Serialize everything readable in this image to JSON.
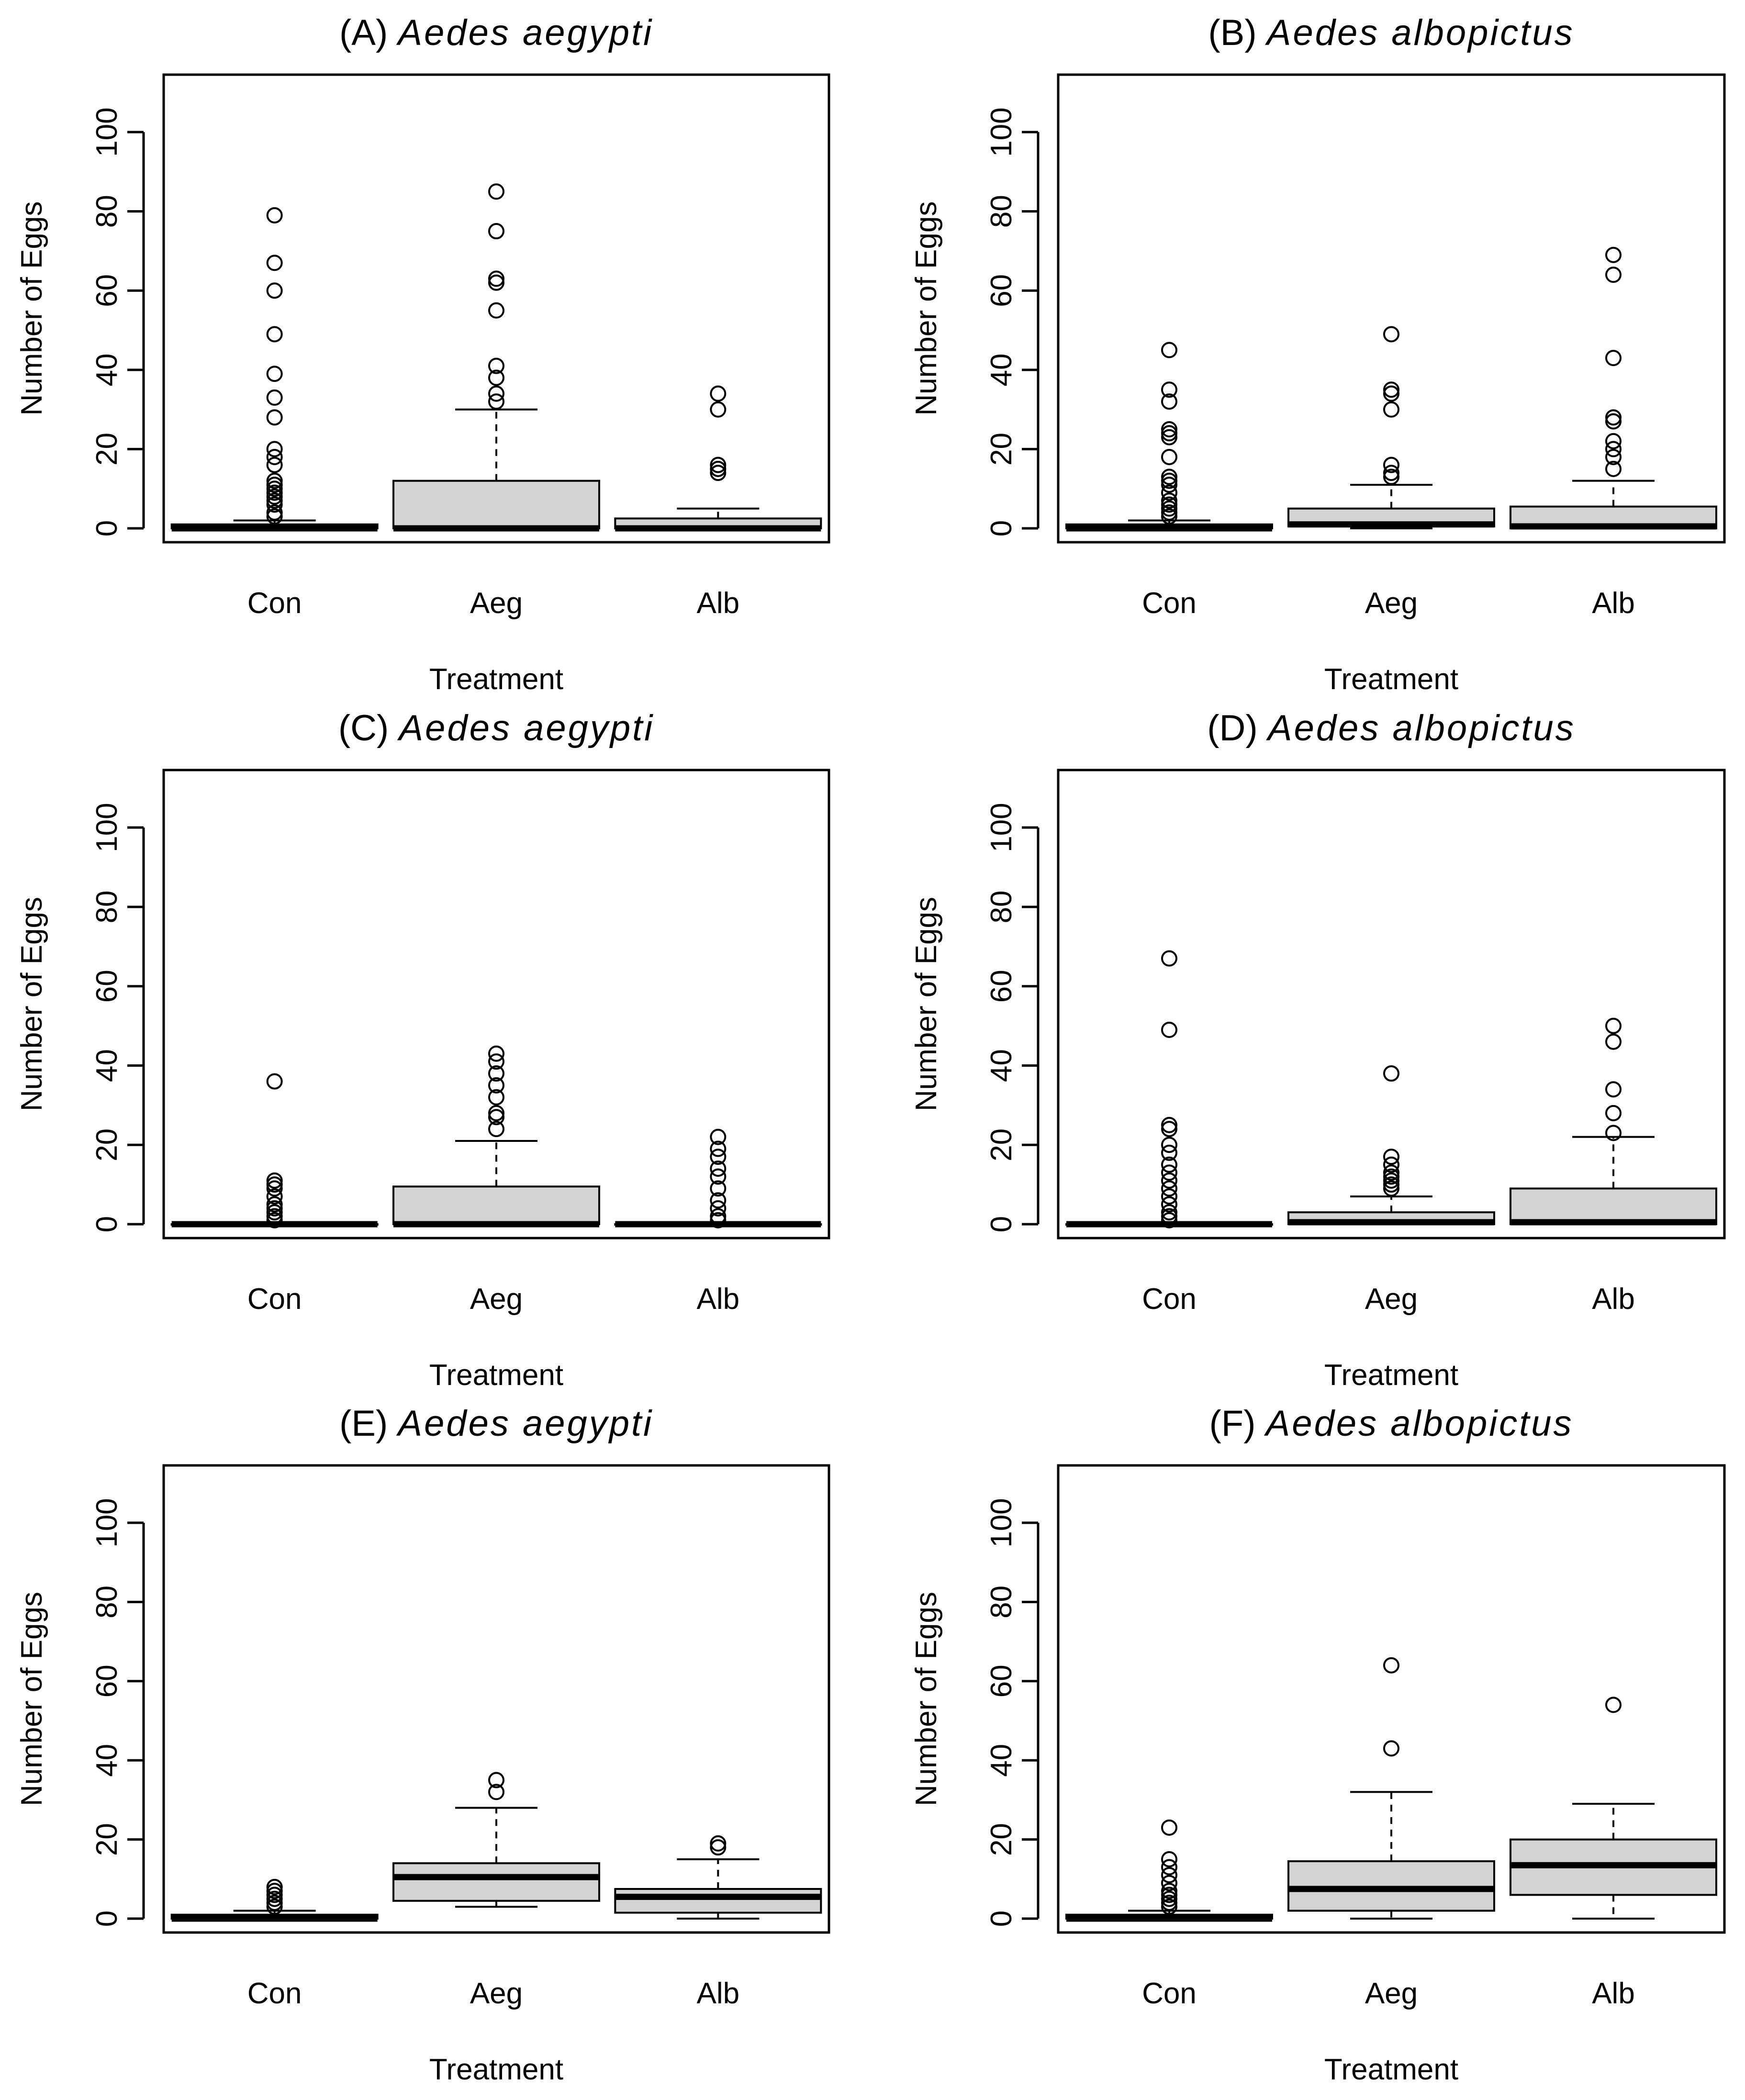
{
  "figure": {
    "colors": {
      "box_fill": "#d3d3d3",
      "line": "#000000",
      "background": "#ffffff"
    }
  },
  "chart_data": [
    {
      "type": "box",
      "panel_letter": "(A)",
      "species": "Aedes aegypti",
      "xlabel": "Treatment",
      "ylabel": "Number of Eggs",
      "ylim": [
        -3.5,
        114.5
      ],
      "yticks": [
        0,
        20,
        40,
        60,
        80,
        100
      ],
      "categories": [
        "Con",
        "Aeg",
        "Alb"
      ],
      "boxes": [
        {
          "low": 0,
          "q1": 0,
          "median": 0,
          "q3": 1,
          "high": 2,
          "outliers": [
            79,
            67,
            60,
            49,
            39,
            33,
            28,
            20,
            18,
            16,
            12,
            11,
            10,
            9,
            8,
            7,
            6,
            4,
            3
          ]
        },
        {
          "low": 0,
          "q1": 0,
          "median": 0,
          "q3": 12,
          "high": 30,
          "outliers": [
            85,
            75,
            63,
            62,
            55,
            41,
            38,
            34,
            32
          ]
        },
        {
          "low": 0,
          "q1": 0,
          "median": 0,
          "q3": 2.5,
          "high": 5,
          "outliers": [
            34,
            30,
            16,
            15,
            14
          ]
        }
      ]
    },
    {
      "type": "box",
      "panel_letter": "(B)",
      "species": "Aedes albopictus",
      "xlabel": "Treatment",
      "ylabel": "Number of Eggs",
      "ylim": [
        -3.5,
        114.5
      ],
      "yticks": [
        0,
        20,
        40,
        60,
        80,
        100
      ],
      "categories": [
        "Con",
        "Aeg",
        "Alb"
      ],
      "boxes": [
        {
          "low": 0,
          "q1": 0,
          "median": 0,
          "q3": 1,
          "high": 2,
          "outliers": [
            45,
            35,
            32,
            25,
            24,
            23,
            18,
            13,
            12,
            11,
            9,
            7,
            6,
            5,
            4,
            3
          ]
        },
        {
          "low": 0,
          "q1": 0.5,
          "median": 1,
          "q3": 5,
          "high": 11,
          "outliers": [
            49,
            35,
            34,
            30,
            16,
            14,
            13
          ]
        },
        {
          "low": 0,
          "q1": 0,
          "median": 0.5,
          "q3": 5.5,
          "high": 12,
          "outliers": [
            69,
            64,
            43,
            28,
            27,
            22,
            20,
            18,
            15
          ]
        }
      ]
    },
    {
      "type": "box",
      "panel_letter": "(C)",
      "species": "Aedes aegypti",
      "xlabel": "Treatment",
      "ylabel": "Number of Eggs",
      "ylim": [
        -3.5,
        114.5
      ],
      "yticks": [
        0,
        20,
        40,
        60,
        80,
        100
      ],
      "categories": [
        "Con",
        "Aeg",
        "Alb"
      ],
      "boxes": [
        {
          "low": 0,
          "q1": 0,
          "median": 0,
          "q3": 0,
          "high": 0,
          "outliers": [
            36,
            11,
            10,
            9,
            7,
            5,
            4,
            3,
            2,
            1
          ]
        },
        {
          "low": 0,
          "q1": 0,
          "median": 0,
          "q3": 9.5,
          "high": 21,
          "outliers": [
            43,
            41,
            38,
            35,
            32,
            28,
            27,
            24
          ]
        },
        {
          "low": 0,
          "q1": 0,
          "median": 0,
          "q3": 0,
          "high": 0,
          "outliers": [
            22,
            19,
            17,
            14,
            12,
            9,
            6,
            4,
            2,
            1
          ]
        }
      ]
    },
    {
      "type": "box",
      "panel_letter": "(D)",
      "species": "Aedes albopictus",
      "xlabel": "Treatment",
      "ylabel": "Number of Eggs",
      "ylim": [
        -3.5,
        114.5
      ],
      "yticks": [
        0,
        20,
        40,
        60,
        80,
        100
      ],
      "categories": [
        "Con",
        "Aeg",
        "Alb"
      ],
      "boxes": [
        {
          "low": 0,
          "q1": 0,
          "median": 0,
          "q3": 0,
          "high": 0,
          "outliers": [
            67,
            49,
            25,
            24,
            20,
            18,
            15,
            13,
            11,
            9,
            7,
            5,
            3,
            2,
            1
          ]
        },
        {
          "low": 0,
          "q1": 0,
          "median": 0.5,
          "q3": 3,
          "high": 7,
          "outliers": [
            38,
            17,
            15,
            13,
            12,
            11,
            10,
            9
          ]
        },
        {
          "low": 0,
          "q1": 0,
          "median": 0.5,
          "q3": 9,
          "high": 22,
          "outliers": [
            50,
            46,
            34,
            28,
            23
          ]
        }
      ]
    },
    {
      "type": "box",
      "panel_letter": "(E)",
      "species": "Aedes aegypti",
      "xlabel": "Treatment",
      "ylabel": "Number of Eggs",
      "ylim": [
        -3.5,
        114.5
      ],
      "yticks": [
        0,
        20,
        40,
        60,
        80,
        100
      ],
      "categories": [
        "Con",
        "Aeg",
        "Alb"
      ],
      "boxes": [
        {
          "low": 0,
          "q1": 0,
          "median": 0,
          "q3": 1,
          "high": 2,
          "outliers": [
            8,
            7,
            6,
            5,
            4,
            3
          ]
        },
        {
          "low": 3,
          "q1": 4.5,
          "median": 10.5,
          "q3": 14,
          "high": 28,
          "outliers": [
            35,
            32
          ]
        },
        {
          "low": 0,
          "q1": 1.5,
          "median": 5.5,
          "q3": 7.5,
          "high": 15,
          "outliers": [
            19,
            18
          ]
        }
      ]
    },
    {
      "type": "box",
      "panel_letter": "(F)",
      "species": "Aedes albopictus",
      "xlabel": "Treatment",
      "ylabel": "Number of Eggs",
      "ylim": [
        -3.5,
        114.5
      ],
      "yticks": [
        0,
        20,
        40,
        60,
        80,
        100
      ],
      "categories": [
        "Con",
        "Aeg",
        "Alb"
      ],
      "boxes": [
        {
          "low": 0,
          "q1": 0,
          "median": 0,
          "q3": 1,
          "high": 2,
          "outliers": [
            23,
            15,
            13,
            11,
            9,
            7,
            6,
            5,
            4,
            3
          ]
        },
        {
          "low": 0,
          "q1": 2,
          "median": 7.5,
          "q3": 14.5,
          "high": 32,
          "outliers": [
            64,
            43
          ]
        },
        {
          "low": 0,
          "q1": 6,
          "median": 13.5,
          "q3": 20,
          "high": 29,
          "outliers": [
            54
          ]
        }
      ]
    }
  ]
}
